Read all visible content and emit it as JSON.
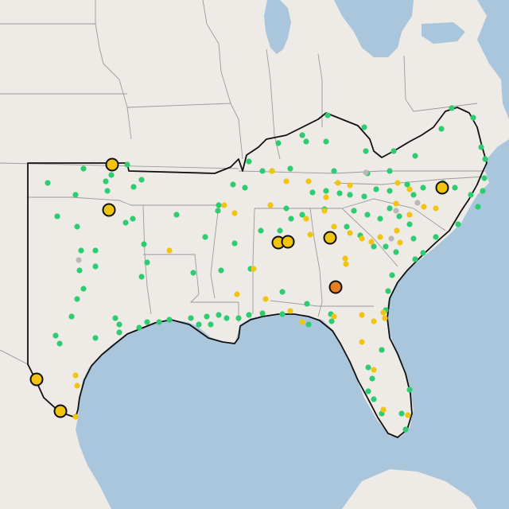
{
  "map": {
    "title": "",
    "colors": {
      "land": "#eeeae6",
      "land_outside": "#e7e2dd",
      "water": "#a9c6dc",
      "lakes": "#a9c6dc",
      "state_borders": "#9b9b9b",
      "region_outline": "#111111"
    },
    "legend": [],
    "categories": {
      "green": "#2ecc71",
      "yellow": "#f1c40f",
      "gray": "#b8b8b8",
      "orange": "#e67e22"
    }
  }
}
